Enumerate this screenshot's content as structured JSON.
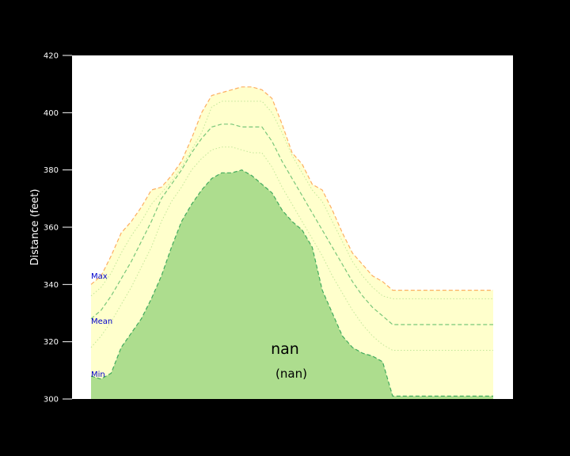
{
  "chart_data": {
    "type": "area",
    "ylabel": "Distance (feet)",
    "ylim": [
      300,
      420
    ],
    "yticks": [
      300,
      320,
      340,
      360,
      380,
      400,
      420
    ],
    "grid": false,
    "center_title": "nan",
    "center_subtitle": "(nan)",
    "band_labels": {
      "max": "Max",
      "mean": "Mean",
      "min": "Min"
    },
    "colors": {
      "plot_bg": "#ffffff",
      "page_bg": "#000000",
      "band_fill": "#ffffcc",
      "min_fill": "#addd8e",
      "max_line": "#fdae61",
      "mean_line": "#78c679",
      "quantile_line": "#c2e699",
      "min_line": "#41ab5d",
      "band_label": "#0000cc"
    },
    "x": [
      0,
      1,
      2,
      3,
      4,
      5,
      6,
      7,
      8,
      9,
      10,
      11,
      12,
      13,
      14,
      15,
      16,
      17,
      18,
      19,
      20,
      21,
      22,
      23,
      24,
      25,
      26,
      27,
      28,
      29,
      30,
      31,
      32,
      33,
      34,
      35,
      36,
      37,
      38,
      39,
      40
    ],
    "series": [
      {
        "name": "Max",
        "values": [
          340,
          343,
          350,
          358,
          362,
          367,
          373,
          374,
          378,
          383,
          391,
          400,
          406,
          407,
          408,
          409,
          409,
          408,
          405,
          396,
          386,
          382,
          375,
          373,
          366,
          358,
          351,
          347,
          343,
          341,
          338,
          338,
          338,
          338,
          338,
          338,
          338,
          338,
          338,
          338,
          338
        ]
      },
      {
        "name": "",
        "values": [
          336,
          339,
          344,
          351,
          357,
          362,
          368,
          372,
          376,
          381,
          387,
          393,
          402,
          404,
          404,
          404,
          404,
          404,
          400,
          393,
          385,
          379,
          373,
          369,
          362,
          355,
          348,
          343,
          339,
          336,
          335,
          335,
          335,
          335,
          335,
          335,
          335,
          335,
          335,
          335,
          335
        ]
      },
      {
        "name": "Mean",
        "values": [
          328,
          331,
          336,
          342,
          348,
          355,
          362,
          370,
          375,
          380,
          386,
          391,
          395,
          396,
          396,
          395,
          395,
          395,
          390,
          383,
          377,
          371,
          365,
          359,
          353,
          347,
          341,
          336,
          332,
          329,
          326,
          326,
          326,
          326,
          326,
          326,
          326,
          326,
          326,
          326,
          326
        ]
      },
      {
        "name": "",
        "values": [
          318,
          322,
          327,
          333,
          339,
          346,
          353,
          362,
          369,
          374,
          380,
          384,
          387,
          388,
          388,
          387,
          386,
          386,
          381,
          374,
          368,
          362,
          356,
          350,
          343,
          337,
          331,
          326,
          322,
          319,
          317,
          317,
          317,
          317,
          317,
          317,
          317,
          317,
          317,
          317,
          317
        ]
      },
      {
        "name": "Min",
        "values": [
          308,
          307,
          309,
          318,
          323,
          328,
          335,
          343,
          353,
          362,
          368,
          373,
          377,
          379,
          379,
          380,
          378,
          375,
          372,
          366,
          362,
          359,
          353,
          338,
          330,
          322,
          318,
          316,
          315,
          313,
          301,
          301,
          301,
          301,
          301,
          301,
          301,
          301,
          301,
          301,
          301
        ]
      }
    ]
  }
}
